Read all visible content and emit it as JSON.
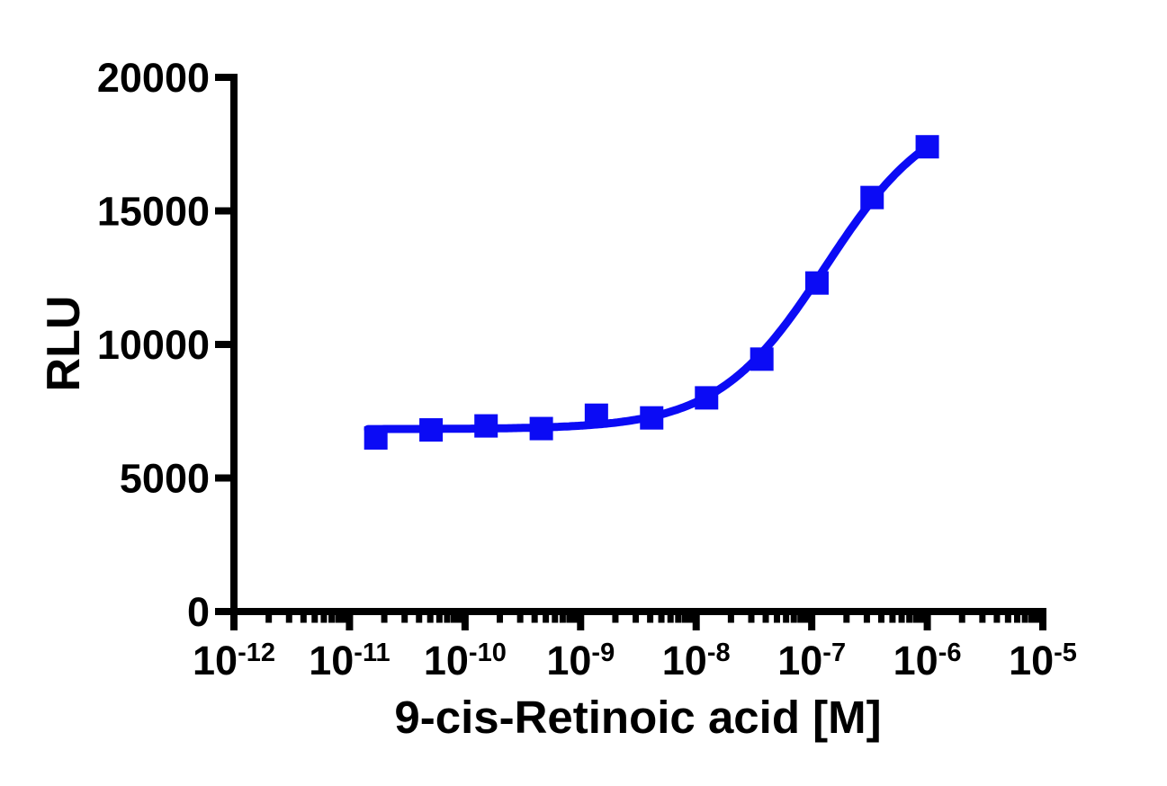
{
  "page": {
    "background_color": "#ffffff"
  },
  "chart_data": {
    "type": "scatter",
    "title": "",
    "xlabel": "9-cis-Retinoic acid [M]",
    "ylabel": "RLU",
    "x_scale": "log10",
    "x_exponent_range": [
      -12,
      -5
    ],
    "x_tick_exponents": [
      -12,
      -11,
      -10,
      -9,
      -8,
      -7,
      -6,
      -5
    ],
    "x_tick_base": "10",
    "x_minor_ticks": "log decades, 2-9 subdivisions",
    "ylim": [
      0,
      20000
    ],
    "y_ticks": [
      0,
      5000,
      10000,
      15000,
      20000
    ],
    "grid": false,
    "legend": "none",
    "axis_color": "#000000",
    "series": [
      {
        "marker": "square",
        "color": "#0b0bf5",
        "points": [
          {
            "x": 1.69e-11,
            "y": 6500
          },
          {
            "x": 5.08e-11,
            "y": 6800
          },
          {
            "x": 1.52e-10,
            "y": 6950
          },
          {
            "x": 4.57e-10,
            "y": 6850
          },
          {
            "x": 1.37e-09,
            "y": 7350
          },
          {
            "x": 4.12e-09,
            "y": 7250
          },
          {
            "x": 1.23e-08,
            "y": 8000
          },
          {
            "x": 3.7e-08,
            "y": 9450
          },
          {
            "x": 1.11e-07,
            "y": 12300
          },
          {
            "x": 3.33e-07,
            "y": 15500
          },
          {
            "x": 1e-06,
            "y": 17400
          }
        ]
      }
    ],
    "fit_curve": {
      "model": "4PL",
      "bottom": 6830,
      "top": 19000,
      "log10_ec50": -6.88,
      "hill": 0.93,
      "log10_x_start": -10.84,
      "log10_x_end": -6.0,
      "color": "#0b0bf5"
    }
  }
}
